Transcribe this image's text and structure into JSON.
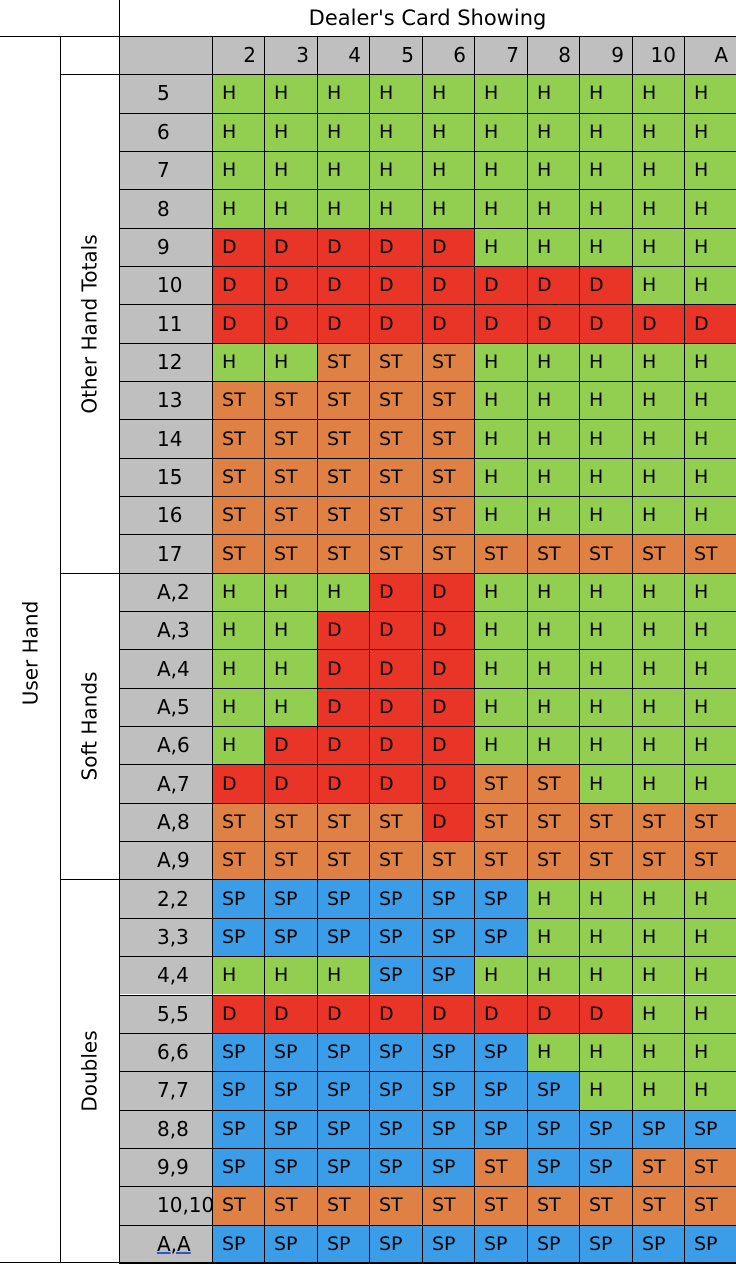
{
  "title": "Dealer's Card Showing",
  "row_header": "User Hand",
  "dealer_cards": [
    "2",
    "3",
    "4",
    "5",
    "6",
    "7",
    "8",
    "9",
    "10",
    "A"
  ],
  "legend_colors": {
    "H": "#92cf51",
    "D": "#e93428",
    "ST": "#df8145",
    "SP": "#3b9de8",
    "label_bg": "#bfbfbf",
    "grid": "#000000"
  },
  "groups": [
    {
      "label": "Other Hand Totals",
      "rows": [
        {
          "hand": "5",
          "actions": [
            "H",
            "H",
            "H",
            "H",
            "H",
            "H",
            "H",
            "H",
            "H",
            "H"
          ]
        },
        {
          "hand": "6",
          "actions": [
            "H",
            "H",
            "H",
            "H",
            "H",
            "H",
            "H",
            "H",
            "H",
            "H"
          ]
        },
        {
          "hand": "7",
          "actions": [
            "H",
            "H",
            "H",
            "H",
            "H",
            "H",
            "H",
            "H",
            "H",
            "H"
          ]
        },
        {
          "hand": "8",
          "actions": [
            "H",
            "H",
            "H",
            "H",
            "H",
            "H",
            "H",
            "H",
            "H",
            "H"
          ]
        },
        {
          "hand": "9",
          "actions": [
            "D",
            "D",
            "D",
            "D",
            "D",
            "H",
            "H",
            "H",
            "H",
            "H"
          ]
        },
        {
          "hand": "10",
          "actions": [
            "D",
            "D",
            "D",
            "D",
            "D",
            "D",
            "D",
            "D",
            "H",
            "H"
          ]
        },
        {
          "hand": "11",
          "actions": [
            "D",
            "D",
            "D",
            "D",
            "D",
            "D",
            "D",
            "D",
            "D",
            "D"
          ]
        },
        {
          "hand": "12",
          "actions": [
            "H",
            "H",
            "ST",
            "ST",
            "ST",
            "H",
            "H",
            "H",
            "H",
            "H"
          ]
        },
        {
          "hand": "13",
          "actions": [
            "ST",
            "ST",
            "ST",
            "ST",
            "ST",
            "H",
            "H",
            "H",
            "H",
            "H"
          ]
        },
        {
          "hand": "14",
          "actions": [
            "ST",
            "ST",
            "ST",
            "ST",
            "ST",
            "H",
            "H",
            "H",
            "H",
            "H"
          ]
        },
        {
          "hand": "15",
          "actions": [
            "ST",
            "ST",
            "ST",
            "ST",
            "ST",
            "H",
            "H",
            "H",
            "H",
            "H"
          ]
        },
        {
          "hand": "16",
          "actions": [
            "ST",
            "ST",
            "ST",
            "ST",
            "ST",
            "H",
            "H",
            "H",
            "H",
            "H"
          ]
        },
        {
          "hand": "17",
          "actions": [
            "ST",
            "ST",
            "ST",
            "ST",
            "ST",
            "ST",
            "ST",
            "ST",
            "ST",
            "ST"
          ]
        }
      ]
    },
    {
      "label": "Soft Hands",
      "rows": [
        {
          "hand": "A,2",
          "actions": [
            "H",
            "H",
            "H",
            "D",
            "D",
            "H",
            "H",
            "H",
            "H",
            "H"
          ]
        },
        {
          "hand": "A,3",
          "actions": [
            "H",
            "H",
            "D",
            "D",
            "D",
            "H",
            "H",
            "H",
            "H",
            "H"
          ]
        },
        {
          "hand": "A,4",
          "actions": [
            "H",
            "H",
            "D",
            "D",
            "D",
            "H",
            "H",
            "H",
            "H",
            "H"
          ]
        },
        {
          "hand": "A,5",
          "actions": [
            "H",
            "H",
            "D",
            "D",
            "D",
            "H",
            "H",
            "H",
            "H",
            "H"
          ]
        },
        {
          "hand": "A,6",
          "actions": [
            "H",
            "D",
            "D",
            "D",
            "D",
            "H",
            "H",
            "H",
            "H",
            "H"
          ]
        },
        {
          "hand": "A,7",
          "actions": [
            "D",
            "D",
            "D",
            "D",
            "D",
            "ST",
            "ST",
            "H",
            "H",
            "H"
          ]
        },
        {
          "hand": "A,8",
          "actions": [
            "ST",
            "ST",
            "ST",
            "ST",
            "D",
            "ST",
            "ST",
            "ST",
            "ST",
            "ST"
          ]
        },
        {
          "hand": "A,9",
          "actions": [
            "ST",
            "ST",
            "ST",
            "ST",
            "ST",
            "ST",
            "ST",
            "ST",
            "ST",
            "ST"
          ]
        }
      ]
    },
    {
      "label": "Doubles",
      "rows": [
        {
          "hand": "2,2",
          "actions": [
            "SP",
            "SP",
            "SP",
            "SP",
            "SP",
            "SP",
            "H",
            "H",
            "H",
            "H"
          ]
        },
        {
          "hand": "3,3",
          "actions": [
            "SP",
            "SP",
            "SP",
            "SP",
            "SP",
            "SP",
            "H",
            "H",
            "H",
            "H"
          ]
        },
        {
          "hand": "4,4",
          "actions": [
            "H",
            "H",
            "H",
            "SP",
            "SP",
            "H",
            "H",
            "H",
            "H",
            "H"
          ]
        },
        {
          "hand": "5,5",
          "actions": [
            "D",
            "D",
            "D",
            "D",
            "D",
            "D",
            "D",
            "D",
            "H",
            "H"
          ]
        },
        {
          "hand": "6,6",
          "actions": [
            "SP",
            "SP",
            "SP",
            "SP",
            "SP",
            "SP",
            "H",
            "H",
            "H",
            "H"
          ]
        },
        {
          "hand": "7,7",
          "actions": [
            "SP",
            "SP",
            "SP",
            "SP",
            "SP",
            "SP",
            "SP",
            "H",
            "H",
            "H"
          ]
        },
        {
          "hand": "8,8",
          "actions": [
            "SP",
            "SP",
            "SP",
            "SP",
            "SP",
            "SP",
            "SP",
            "SP",
            "SP",
            "SP"
          ]
        },
        {
          "hand": "9,9",
          "actions": [
            "SP",
            "SP",
            "SP",
            "SP",
            "SP",
            "ST",
            "SP",
            "SP",
            "ST",
            "ST"
          ]
        },
        {
          "hand": "10,10",
          "actions": [
            "ST",
            "ST",
            "ST",
            "ST",
            "ST",
            "ST",
            "ST",
            "ST",
            "ST",
            "ST"
          ]
        },
        {
          "hand": "A,A",
          "actions": [
            "SP",
            "SP",
            "SP",
            "SP",
            "SP",
            "SP",
            "SP",
            "SP",
            "SP",
            "SP"
          ],
          "underlined": true
        }
      ]
    }
  ]
}
